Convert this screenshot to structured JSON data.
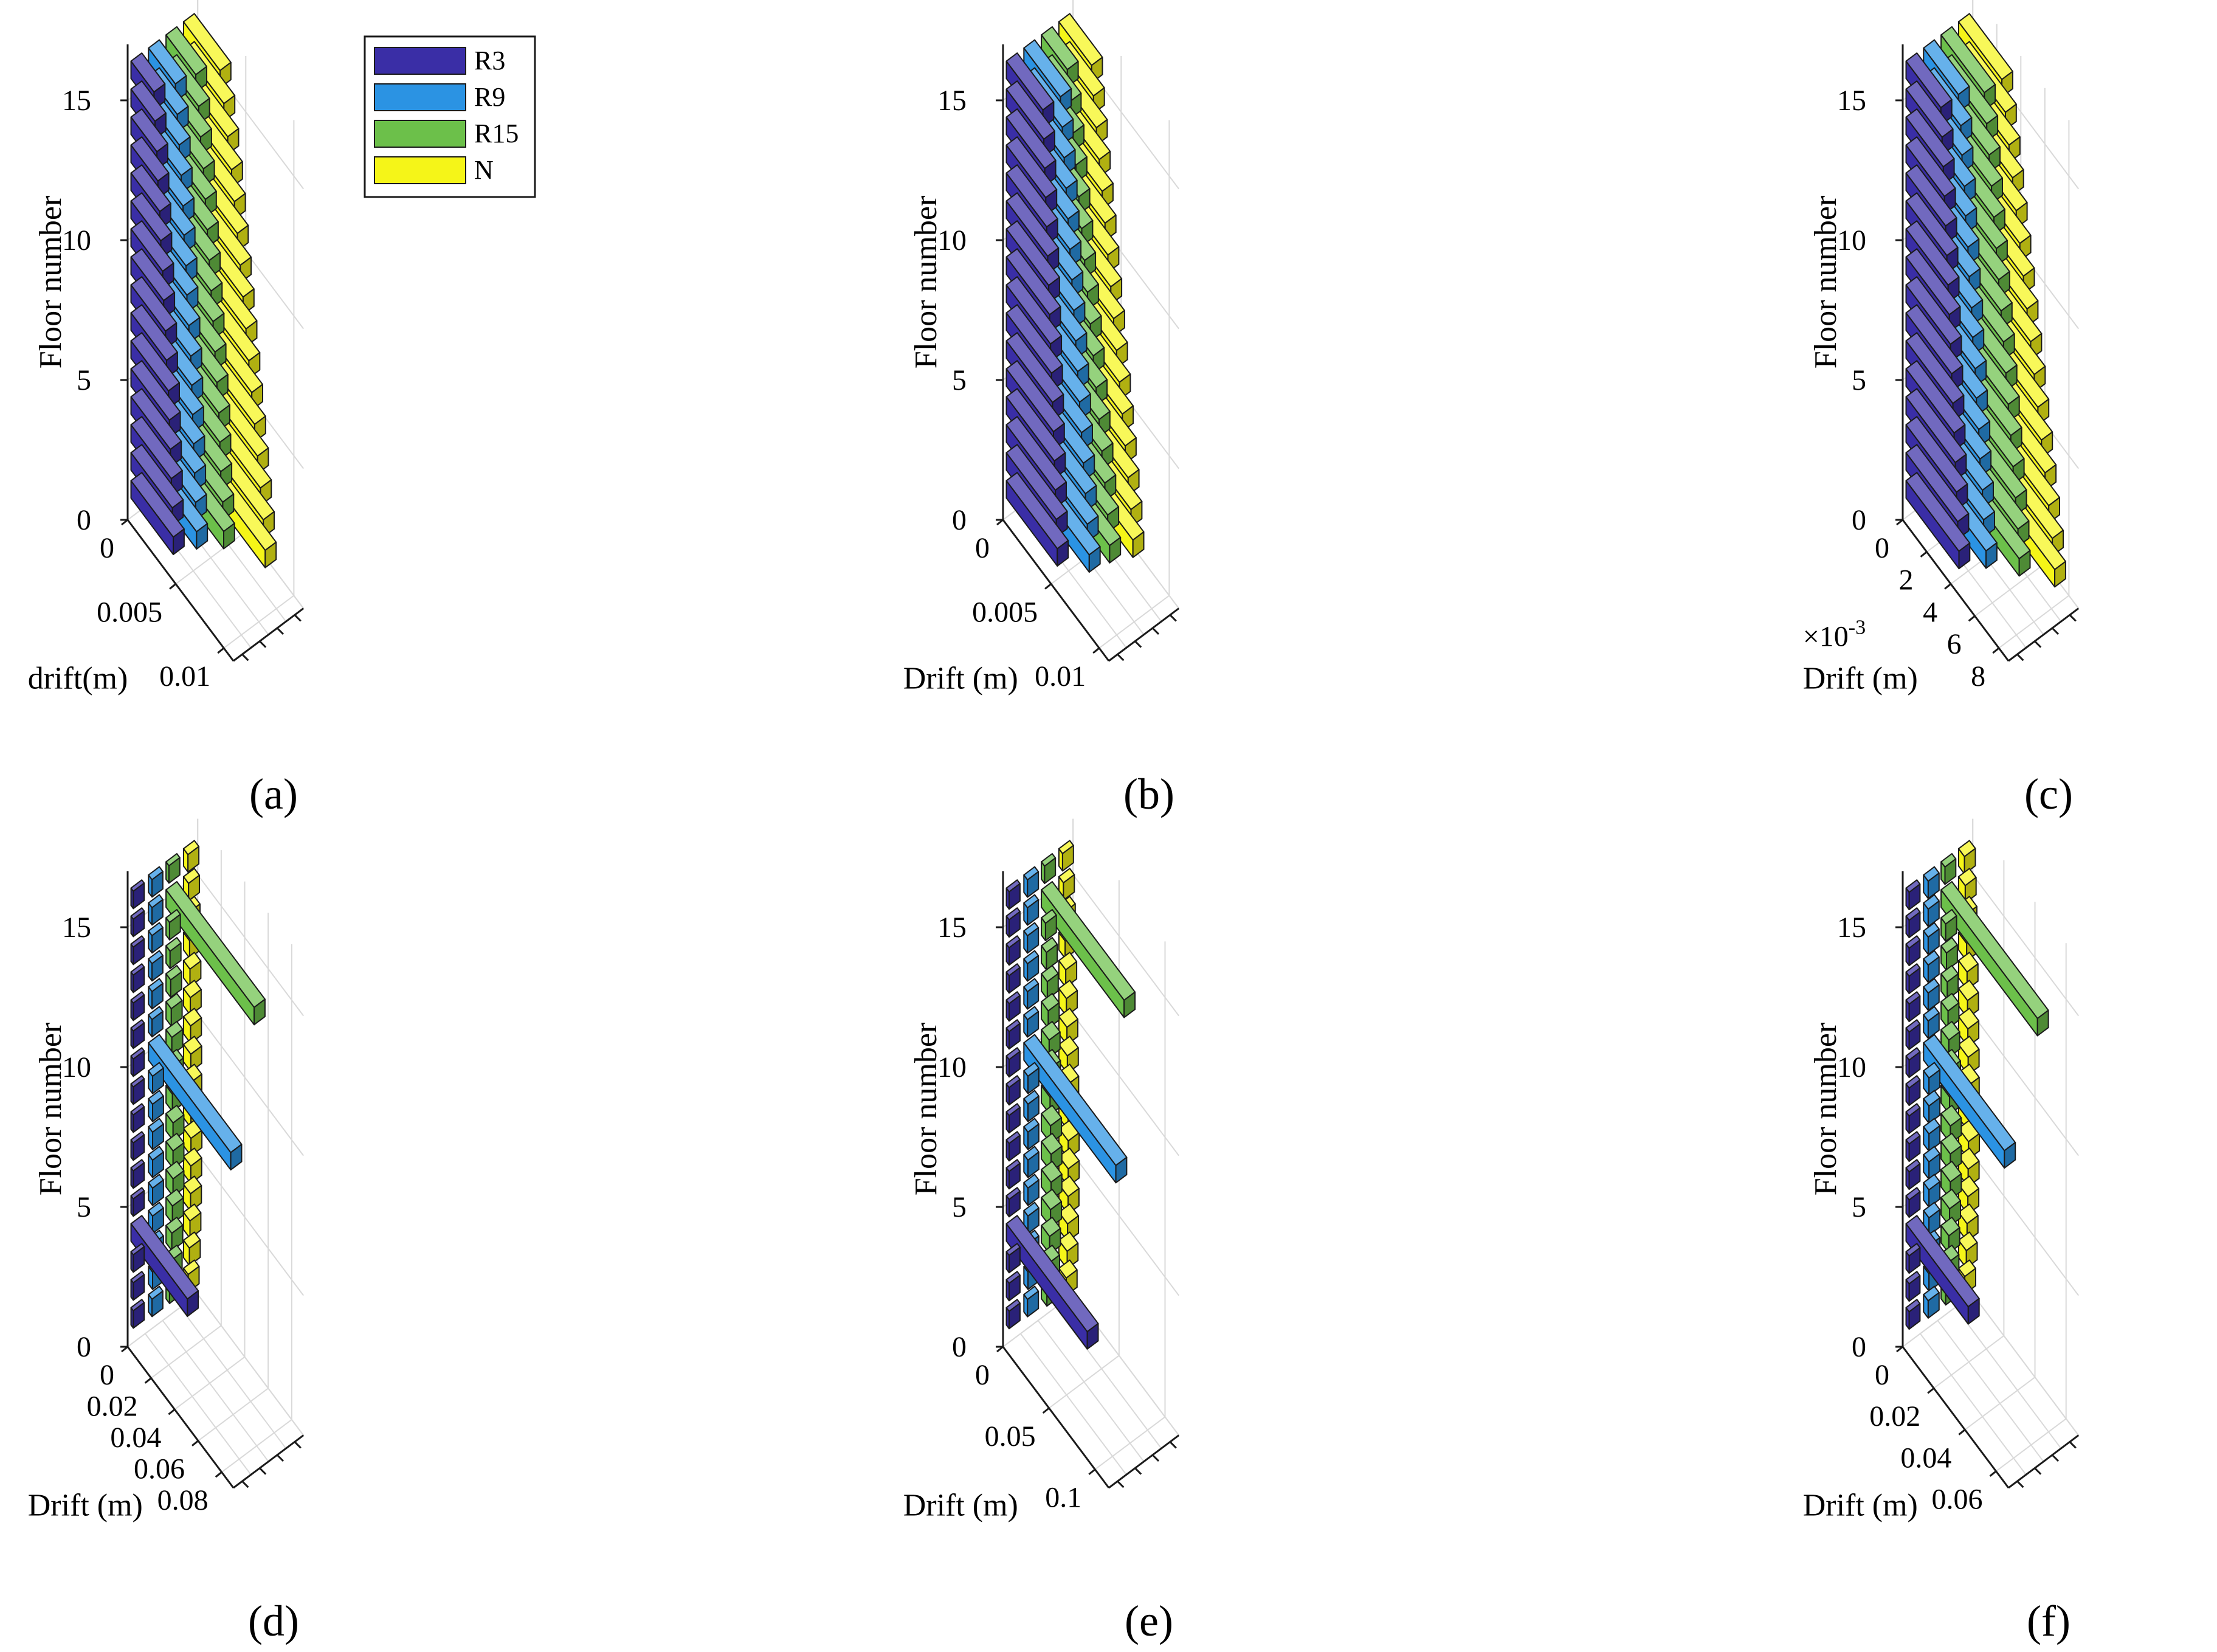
{
  "figure": {
    "legend": [
      {
        "label": "R3",
        "color": "#3a2ea6"
      },
      {
        "label": "R9",
        "color": "#2b93e3"
      },
      {
        "label": "R15",
        "color": "#6cc04a"
      },
      {
        "label": "N",
        "color": "#f5f518"
      }
    ],
    "edge_color": "#1a1a1a",
    "grid_color": "#d9d9d9"
  },
  "chart_data": [
    {
      "panel": "a",
      "caption": "(a)",
      "type": "bar3h",
      "zlabel": "Floor number",
      "xlabel": "drift(m)",
      "z_ticks": [
        "0",
        "5",
        "10",
        "15"
      ],
      "x_ticks": [
        "0",
        "0.005",
        "0.01"
      ],
      "x_tick_values": [
        0,
        0.005,
        0.01
      ],
      "x_max": 0.011,
      "floors": [
        1,
        2,
        3,
        4,
        5,
        6,
        7,
        8,
        9,
        10,
        11,
        12,
        13,
        14,
        15,
        16
      ],
      "series": [
        {
          "name": "R3",
          "values": [
            0.0044,
            0.0043,
            0.0042,
            0.0041,
            0.004,
            0.0039,
            0.0037,
            0.0036,
            0.0034,
            0.0033,
            0.0031,
            0.003,
            0.0028,
            0.0027,
            0.0025,
            0.0024
          ]
        },
        {
          "name": "R9",
          "values": [
            0.005,
            0.0049,
            0.0048,
            0.0047,
            0.0046,
            0.0045,
            0.0044,
            0.0042,
            0.004,
            0.0039,
            0.0037,
            0.0036,
            0.0034,
            0.0032,
            0.003,
            0.0028
          ]
        },
        {
          "name": "R15",
          "values": [
            0.006,
            0.0059,
            0.0057,
            0.0056,
            0.0055,
            0.0053,
            0.0051,
            0.0049,
            0.0047,
            0.0045,
            0.0043,
            0.0041,
            0.0039,
            0.0036,
            0.0034,
            0.0031
          ]
        },
        {
          "name": "N",
          "values": [
            0.0085,
            0.0083,
            0.008,
            0.0077,
            0.0074,
            0.0071,
            0.0068,
            0.0065,
            0.0062,
            0.0059,
            0.0056,
            0.0053,
            0.005,
            0.0046,
            0.0042,
            0.0038
          ]
        }
      ]
    },
    {
      "panel": "b",
      "caption": "(b)",
      "type": "bar3h",
      "zlabel": "Floor number",
      "xlabel": "Drift (m)",
      "z_ticks": [
        "0",
        "5",
        "10",
        "15"
      ],
      "x_ticks": [
        "0",
        "0.005",
        "0.01"
      ],
      "x_tick_values": [
        0,
        0.005,
        0.01
      ],
      "x_max": 0.011,
      "floors": [
        1,
        2,
        3,
        4,
        5,
        6,
        7,
        8,
        9,
        10,
        11,
        12,
        13,
        14,
        15,
        16
      ],
      "series": [
        {
          "name": "R3",
          "values": [
            0.0053,
            0.0052,
            0.0051,
            0.005,
            0.0049,
            0.0048,
            0.0047,
            0.0046,
            0.0045,
            0.0044,
            0.0043,
            0.0042,
            0.0041,
            0.004,
            0.0039,
            0.0038
          ]
        },
        {
          "name": "R9",
          "values": [
            0.0068,
            0.0066,
            0.0064,
            0.0062,
            0.006,
            0.0058,
            0.0056,
            0.0054,
            0.0052,
            0.005,
            0.0048,
            0.0046,
            0.0044,
            0.0042,
            0.004,
            0.0038
          ]
        },
        {
          "name": "R15",
          "values": [
            0.0071,
            0.0069,
            0.0066,
            0.0063,
            0.006,
            0.0057,
            0.0054,
            0.0051,
            0.0048,
            0.0045,
            0.0042,
            0.0039,
            0.0036,
            0.0033,
            0.003,
            0.0027
          ]
        },
        {
          "name": "N",
          "values": [
            0.0077,
            0.0075,
            0.0072,
            0.0069,
            0.0066,
            0.0063,
            0.006,
            0.0057,
            0.0054,
            0.0051,
            0.0048,
            0.0045,
            0.0042,
            0.0039,
            0.0036,
            0.0034
          ]
        }
      ]
    },
    {
      "panel": "c",
      "caption": "(c)",
      "type": "bar3h",
      "zlabel": "Floor number",
      "xlabel": "Drift (m)",
      "x_multiplier": "×10",
      "x_multiplier_exp": "-3",
      "z_ticks": [
        "0",
        "5",
        "10",
        "15"
      ],
      "x_ticks": [
        "0",
        "2",
        "4",
        "6",
        "8"
      ],
      "x_tick_values": [
        0,
        0.002,
        0.004,
        0.006,
        0.008
      ],
      "x_max": 0.0088,
      "floors": [
        1,
        2,
        3,
        4,
        5,
        6,
        7,
        8,
        9,
        10,
        11,
        12,
        13,
        14,
        15,
        16
      ],
      "series": [
        {
          "name": "R3",
          "values": [
            0.0044,
            0.0043,
            0.0042,
            0.0041,
            0.004,
            0.0039,
            0.0038,
            0.0037,
            0.0036,
            0.0035,
            0.0034,
            0.0033,
            0.0032,
            0.0031,
            0.003,
            0.0029
          ]
        },
        {
          "name": "R9",
          "values": [
            0.0052,
            0.005,
            0.0049,
            0.0047,
            0.0046,
            0.0044,
            0.0043,
            0.0041,
            0.004,
            0.0038,
            0.0037,
            0.0035,
            0.0034,
            0.0032,
            0.0031,
            0.0029
          ]
        },
        {
          "name": "R15",
          "values": [
            0.0065,
            0.0064,
            0.0062,
            0.006,
            0.0058,
            0.0056,
            0.0054,
            0.0052,
            0.005,
            0.0048,
            0.0046,
            0.0044,
            0.0042,
            0.004,
            0.0038,
            0.0036
          ]
        },
        {
          "name": "N",
          "values": [
            0.008,
            0.0078,
            0.0075,
            0.0072,
            0.0069,
            0.0066,
            0.0063,
            0.006,
            0.0057,
            0.0054,
            0.0051,
            0.0048,
            0.0045,
            0.0042,
            0.0039,
            0.0036
          ]
        }
      ]
    },
    {
      "panel": "d",
      "caption": "(d)",
      "type": "bar3h",
      "zlabel": "Floor number",
      "xlabel": "Drift (m)",
      "z_ticks": [
        "0",
        "5",
        "10",
        "15"
      ],
      "x_ticks": [
        "0",
        "0.02",
        "0.04",
        "0.06",
        "0.08"
      ],
      "x_tick_values": [
        0,
        0.02,
        0.04,
        0.06,
        0.08
      ],
      "x_max": 0.09,
      "floors": [
        1,
        2,
        3,
        4,
        5,
        6,
        7,
        8,
        9,
        10,
        11,
        12,
        13,
        14,
        15,
        16
      ],
      "series": [
        {
          "name": "R3",
          "values": [
            0.002,
            0.002,
            0.002,
            0.048,
            0.002,
            0.002,
            0.002,
            0.002,
            0.002,
            0.002,
            0.002,
            0.002,
            0.002,
            0.002,
            0.002,
            0.002
          ]
        },
        {
          "name": "R9",
          "values": [
            0.003,
            0.0035,
            0.0035,
            0.0035,
            0.0035,
            0.0035,
            0.0035,
            0.0035,
            0.0035,
            0.07,
            0.003,
            0.003,
            0.003,
            0.003,
            0.003,
            0.003
          ]
        },
        {
          "name": "R15",
          "values": [
            0.003,
            0.0045,
            0.005,
            0.0055,
            0.006,
            0.006,
            0.006,
            0.0055,
            0.0055,
            0.005,
            0.0045,
            0.004,
            0.0035,
            0.003,
            0.075,
            0.0025
          ]
        },
        {
          "name": "N",
          "values": [
            0.004,
            0.005,
            0.0055,
            0.006,
            0.0062,
            0.0064,
            0.0064,
            0.0063,
            0.0062,
            0.006,
            0.0058,
            0.0055,
            0.0052,
            0.0048,
            0.0043,
            0.0038
          ]
        }
      ]
    },
    {
      "panel": "e",
      "caption": "(e)",
      "type": "bar3h",
      "zlabel": "Floor number",
      "xlabel": "Drift (m)",
      "z_ticks": [
        "0",
        "5",
        "10",
        "15"
      ],
      "x_ticks": [
        "0",
        "0.05",
        "0.1"
      ],
      "x_tick_values": [
        0,
        0.05,
        0.1
      ],
      "x_max": 0.115,
      "floors": [
        1,
        2,
        3,
        4,
        5,
        6,
        7,
        8,
        9,
        10,
        11,
        12,
        13,
        14,
        15,
        16
      ],
      "series": [
        {
          "name": "R3",
          "values": [
            0.003,
            0.003,
            0.003,
            0.088,
            0.003,
            0.003,
            0.003,
            0.003,
            0.003,
            0.003,
            0.003,
            0.003,
            0.003,
            0.003,
            0.003,
            0.003
          ]
        },
        {
          "name": "R9",
          "values": [
            0.004,
            0.0045,
            0.0045,
            0.0045,
            0.0045,
            0.0045,
            0.0045,
            0.0045,
            0.0045,
            0.1,
            0.004,
            0.004,
            0.004,
            0.004,
            0.004,
            0.004
          ]
        },
        {
          "name": "R15",
          "values": [
            0.006,
            0.008,
            0.009,
            0.01,
            0.0105,
            0.0105,
            0.01,
            0.0095,
            0.009,
            0.0085,
            0.0075,
            0.0065,
            0.0055,
            0.0045,
            0.09,
            0.0035
          ]
        },
        {
          "name": "N",
          "values": [
            0.008,
            0.009,
            0.0095,
            0.01,
            0.0102,
            0.0102,
            0.01,
            0.0097,
            0.0093,
            0.0088,
            0.0082,
            0.0075,
            0.0068,
            0.006,
            0.005,
            0.004
          ]
        }
      ]
    },
    {
      "panel": "f",
      "caption": "(f)",
      "type": "bar3h",
      "zlabel": "Floor number",
      "xlabel": "Drift (m)",
      "z_ticks": [
        "0",
        "5",
        "10",
        "15"
      ],
      "x_ticks": [
        "0",
        "0.02",
        "0.04",
        "0.06"
      ],
      "x_tick_values": [
        0,
        0.02,
        0.04,
        0.06
      ],
      "x_max": 0.068,
      "floors": [
        1,
        2,
        3,
        4,
        5,
        6,
        7,
        8,
        9,
        10,
        11,
        12,
        13,
        14,
        15,
        16
      ],
      "series": [
        {
          "name": "R3",
          "values": [
            0.002,
            0.002,
            0.002,
            0.04,
            0.002,
            0.002,
            0.002,
            0.002,
            0.002,
            0.002,
            0.002,
            0.002,
            0.002,
            0.002,
            0.002,
            0.002
          ]
        },
        {
          "name": "R9",
          "values": [
            0.003,
            0.0035,
            0.0035,
            0.0035,
            0.0035,
            0.0035,
            0.0035,
            0.0035,
            0.0035,
            0.052,
            0.003,
            0.003,
            0.003,
            0.003,
            0.003,
            0.003
          ]
        },
        {
          "name": "R15",
          "values": [
            0.003,
            0.0045,
            0.005,
            0.0055,
            0.006,
            0.006,
            0.006,
            0.0055,
            0.0055,
            0.005,
            0.0045,
            0.004,
            0.0035,
            0.003,
            0.062,
            0.0025
          ]
        },
        {
          "name": "N",
          "values": [
            0.004,
            0.005,
            0.0055,
            0.006,
            0.0062,
            0.0064,
            0.0064,
            0.0063,
            0.0062,
            0.006,
            0.0058,
            0.0055,
            0.0052,
            0.0048,
            0.0043,
            0.0038
          ]
        }
      ]
    }
  ]
}
